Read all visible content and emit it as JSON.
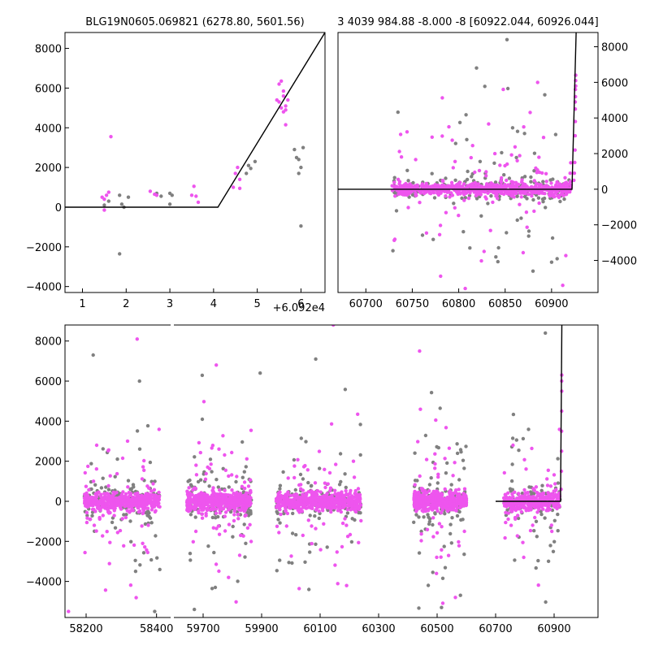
{
  "chart_data": [
    {
      "type": "scatter",
      "panel": "top-left",
      "title": "BLG19N0605.069821 (6278.80, 5601.56)",
      "xlabel": "",
      "ylabel": "",
      "x_offset_label": "+6.092e4",
      "xlim": [
        0.6,
        6.55
      ],
      "ylim": [
        -4300,
        8800
      ],
      "x_ticks": [
        1,
        2,
        3,
        4,
        5,
        6
      ],
      "x_tick_labels": [
        "1",
        "2",
        "3",
        "4",
        "5",
        "6"
      ],
      "y_ticks": [
        -4000,
        -2000,
        0,
        2000,
        4000,
        6000,
        8000
      ],
      "y_tick_labels": [
        "−4000",
        "−2000",
        "0",
        "2000",
        "4000",
        "6000",
        "8000"
      ],
      "series": [
        {
          "color": "#ee55ee",
          "points": [
            [
              1.5,
              -150
            ],
            [
              1.45,
              500
            ],
            [
              1.55,
              600
            ],
            [
              1.6,
              750
            ],
            [
              1.5,
              400
            ],
            [
              1.65,
              3550
            ],
            [
              2.55,
              800
            ],
            [
              2.65,
              650
            ],
            [
              2.7,
              600
            ],
            [
              3.55,
              1050
            ],
            [
              3.5,
              600
            ],
            [
              3.6,
              550
            ],
            [
              3.65,
              250
            ],
            [
              4.5,
              1700
            ],
            [
              4.55,
              2000
            ],
            [
              4.45,
              1000
            ],
            [
              4.6,
              950
            ],
            [
              4.6,
              1400
            ],
            [
              5.45,
              5400
            ],
            [
              5.5,
              5300
            ],
            [
              5.5,
              6200
            ],
            [
              5.55,
              6350
            ],
            [
              5.6,
              5850
            ],
            [
              5.6,
              5600
            ],
            [
              5.55,
              5000
            ],
            [
              5.65,
              4900
            ],
            [
              5.65,
              5100
            ],
            [
              5.7,
              5400
            ],
            [
              5.6,
              4800
            ],
            [
              5.65,
              4150
            ]
          ]
        },
        {
          "color": "#808080",
          "points": [
            [
              1.5,
              100
            ],
            [
              1.6,
              300
            ],
            [
              1.85,
              600
            ],
            [
              1.9,
              150
            ],
            [
              1.95,
              0
            ],
            [
              2.05,
              500
            ],
            [
              1.85,
              -2350
            ],
            [
              2.7,
              700
            ],
            [
              2.8,
              550
            ],
            [
              3.0,
              700
            ],
            [
              3.05,
              600
            ],
            [
              3.0,
              150
            ],
            [
              4.75,
              1700
            ],
            [
              4.8,
              2100
            ],
            [
              4.85,
              1950
            ],
            [
              4.95,
              2300
            ],
            [
              5.85,
              2900
            ],
            [
              5.9,
              2500
            ],
            [
              5.95,
              2400
            ],
            [
              6.0,
              2000
            ],
            [
              6.05,
              3000
            ],
            [
              5.95,
              1700
            ],
            [
              6.0,
              -950
            ]
          ]
        }
      ],
      "model_line": [
        [
          0.6,
          0
        ],
        [
          4.1,
          0
        ],
        [
          6.55,
          8800
        ]
      ]
    },
    {
      "type": "scatter",
      "panel": "top-right",
      "title": "3 4039 984.88 -8.000 -8 [60922.044, 60926.044]",
      "xlabel": "",
      "ylabel": "",
      "xlim": [
        60670,
        60950
      ],
      "ylim": [
        -5800,
        8800
      ],
      "x_ticks": [
        60700,
        60750,
        60800,
        60850,
        60900
      ],
      "x_tick_labels": [
        "60700",
        "60750",
        "60800",
        "60850",
        "60900"
      ],
      "y_ticks": [
        -4000,
        -2000,
        0,
        2000,
        4000,
        6000,
        8000
      ],
      "y_tick_labels": [
        "−4000",
        "−2000",
        "0",
        "2000",
        "4000",
        "6000",
        "8000"
      ],
      "scatter_cloud": {
        "x_range": [
          60728,
          60921
        ],
        "center": 0,
        "spread": 300,
        "outlier_spread": 2500,
        "magenta_points": 700,
        "gray_points": 260
      },
      "extra_points": [
        [
          60848,
          5600,
          "#ee55ee"
        ],
        [
          60853,
          5650,
          "#808080"
        ],
        [
          60885,
          6000,
          "#ee55ee"
        ],
        [
          60870,
          3500,
          "#ee55ee"
        ],
        [
          60858,
          3450,
          "#808080"
        ],
        [
          60793,
          2750,
          "#ee55ee"
        ],
        [
          60815,
          2450,
          "#ee55ee"
        ],
        [
          60863,
          1600,
          "#ee55ee"
        ],
        [
          60887,
          950,
          "#ee55ee"
        ],
        [
          60852,
          8400,
          "#808080"
        ],
        [
          60812,
          -3300,
          "#808080"
        ],
        [
          60840,
          -3800,
          "#808080"
        ],
        [
          60880,
          -4600,
          "#808080"
        ],
        [
          60900,
          -4100,
          "#808080"
        ],
        [
          60912,
          -5400,
          "#ee55ee"
        ],
        [
          60906,
          -3900,
          "#808080"
        ]
      ],
      "late_rise_points": [
        [
          60924,
          500
        ],
        [
          60924.5,
          900
        ],
        [
          60925,
          1500
        ],
        [
          60925.2,
          2200
        ],
        [
          60925.4,
          3000
        ],
        [
          60925.6,
          3800
        ],
        [
          60925.6,
          4500
        ],
        [
          60925.8,
          5200
        ],
        [
          60926,
          5800
        ],
        [
          60926,
          6400
        ],
        [
          60925.9,
          6100
        ],
        [
          60925.7,
          5600
        ],
        [
          60925.5,
          4900
        ]
      ],
      "model_line": [
        [
          60670,
          0
        ],
        [
          60922,
          0
        ],
        [
          60926.5,
          8800
        ]
      ]
    },
    {
      "type": "scatter",
      "panel": "bottom",
      "title": "",
      "xlabel": "",
      "ylabel": "",
      "x_segments": [
        {
          "xlim": [
            58140,
            58440
          ],
          "ticks": [
            58200,
            58400
          ],
          "tick_labels": [
            "58200",
            "58400"
          ]
        },
        {
          "xlim": [
            59600,
            61050
          ],
          "ticks": [
            59700,
            59900,
            60100,
            60300,
            60500,
            60700,
            60900
          ],
          "tick_labels": [
            "59700",
            "59900",
            "60100",
            "60300",
            "60500",
            "60700",
            "60900"
          ]
        }
      ],
      "ylim": [
        -5800,
        8800
      ],
      "y_ticks": [
        -4000,
        -2000,
        0,
        2000,
        4000,
        6000,
        8000
      ],
      "y_tick_labels": [
        "−4000",
        "−2000",
        "0",
        "2000",
        "4000",
        "6000",
        "8000"
      ],
      "seasons": [
        {
          "x_range": [
            58195,
            58410
          ],
          "n": 520
        },
        {
          "x_range": [
            59645,
            59865
          ],
          "n": 520
        },
        {
          "x_range": [
            59950,
            60240
          ],
          "n": 520
        },
        {
          "x_range": [
            60420,
            60600
          ],
          "n": 520
        },
        {
          "x_range": [
            60728,
            60921
          ],
          "n": 330
        }
      ],
      "extra_points": [
        [
          58220,
          7300,
          "#808080"
        ],
        [
          58345,
          8100,
          "#ee55ee"
        ],
        [
          59745,
          6800,
          "#ee55ee"
        ],
        [
          59895,
          6400,
          "#808080"
        ],
        [
          60145,
          8800,
          "#ee55ee"
        ],
        [
          60085,
          7100,
          "#808080"
        ],
        [
          60440,
          7500,
          "#ee55ee"
        ],
        [
          60870,
          8400,
          "#808080"
        ],
        [
          58150,
          -5500,
          "#ee55ee"
        ],
        [
          59670,
          -5400,
          "#808080"
        ],
        [
          60515,
          -5300,
          "#808080"
        ]
      ],
      "late_rise_points": [
        [
          60924,
          600
        ],
        [
          60925,
          1500
        ],
        [
          60925.5,
          2500
        ],
        [
          60925.6,
          3500
        ],
        [
          60925.8,
          4500
        ],
        [
          60926,
          5500
        ],
        [
          60926,
          6300
        ],
        [
          60925.9,
          6000
        ]
      ],
      "model_line": [
        [
          60700,
          0
        ],
        [
          60922,
          0
        ],
        [
          60926.5,
          8800
        ]
      ]
    }
  ]
}
